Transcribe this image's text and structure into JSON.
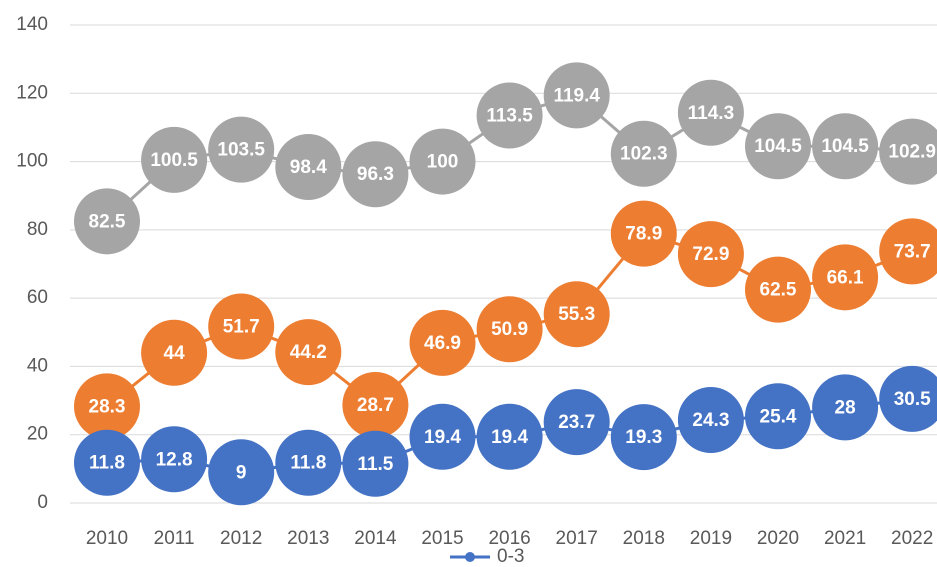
{
  "chart_data": {
    "type": "line",
    "categories": [
      "2010",
      "2011",
      "2012",
      "2013",
      "2014",
      "2015",
      "2016",
      "2017",
      "2018",
      "2019",
      "2020",
      "2021",
      "2022"
    ],
    "series": [
      {
        "name": "0-3",
        "color": "#4472c4",
        "values": [
          11.8,
          12.8,
          9,
          11.8,
          11.5,
          19.4,
          19.4,
          23.7,
          19.3,
          24.3,
          25.4,
          28,
          30.5
        ]
      },
      {
        "color": "#ed7d31",
        "values": [
          28.3,
          44,
          51.7,
          44.2,
          28.7,
          46.9,
          50.9,
          55.3,
          78.9,
          72.9,
          62.5,
          66.1,
          73.7
        ]
      },
      {
        "color": "#a5a5a5",
        "values": [
          82.5,
          100.5,
          103.5,
          98.4,
          96.3,
          100,
          113.5,
          119.4,
          102.3,
          114.3,
          104.5,
          104.5,
          102.9
        ]
      }
    ],
    "ylim": [
      0,
      140
    ],
    "yticks": [
      0,
      20,
      40,
      60,
      80,
      100,
      120,
      140
    ],
    "grid": true,
    "legend": "bottom"
  }
}
